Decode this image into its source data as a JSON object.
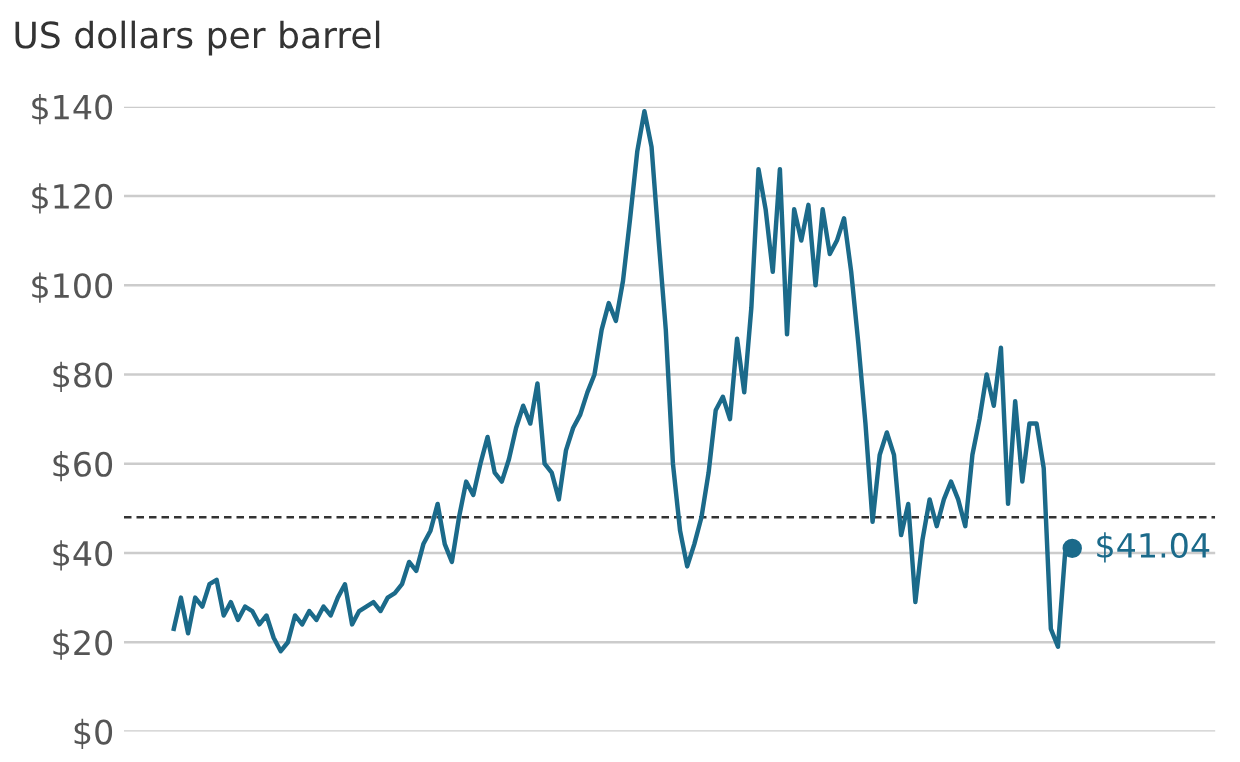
{
  "chart_data": {
    "type": "line",
    "subtitle": "US dollars per barrel",
    "categories": [
      null,
      null,
      null,
      null,
      null,
      null,
      null,
      null,
      null,
      null,
      null,
      null,
      null,
      null,
      null,
      null,
      null,
      null,
      null,
      null,
      null,
      null,
      null,
      null,
      null,
      null,
      null,
      null,
      null,
      null,
      null,
      null,
      null,
      null,
      null,
      null,
      null,
      null,
      null,
      null,
      null,
      null,
      null,
      null,
      null,
      null,
      null,
      null,
      null,
      null,
      null,
      null,
      null,
      null,
      null,
      null,
      null,
      null,
      null,
      null,
      null,
      null,
      null,
      null,
      null,
      null,
      null,
      null,
      null,
      null,
      null,
      null,
      null,
      null,
      null,
      null,
      null,
      null,
      null,
      null,
      null,
      null,
      null,
      null,
      null,
      null,
      null,
      null,
      null,
      null,
      null,
      null,
      null,
      null,
      null,
      null,
      null,
      null,
      null,
      null,
      null,
      null,
      null,
      null,
      null,
      null,
      null,
      null,
      null,
      null,
      null,
      null,
      null,
      null,
      null,
      null,
      null,
      null,
      null,
      null,
      null,
      null,
      null,
      null,
      null,
      null,
      null
    ],
    "series": [
      {
        "color": "#1b6a8a",
        "values": [
          23,
          30,
          22,
          30,
          28,
          33,
          34,
          26,
          29,
          25,
          28,
          27,
          24,
          26,
          21,
          18,
          20,
          26,
          24,
          27,
          25,
          28,
          26,
          30,
          33,
          24,
          27,
          28,
          29,
          27,
          30,
          31,
          33,
          38,
          36,
          42,
          45,
          51,
          42,
          38,
          48,
          56,
          53,
          60,
          66,
          58,
          56,
          61,
          68,
          73,
          69,
          78,
          60,
          58,
          52,
          63,
          68,
          71,
          76,
          80,
          90,
          96,
          92,
          101,
          115,
          130,
          139,
          131,
          110,
          90,
          60,
          45,
          37,
          42,
          48,
          58,
          72,
          75,
          70,
          88,
          76,
          95,
          126,
          117,
          103,
          126,
          89,
          117,
          110,
          118,
          100,
          117,
          107,
          110,
          115,
          103,
          87,
          69,
          47,
          62,
          67,
          62,
          44,
          51,
          29,
          43,
          52,
          46,
          52,
          56,
          52,
          46,
          62,
          70,
          80,
          73,
          86,
          51,
          74,
          56,
          69,
          69,
          59,
          23,
          19,
          40,
          41.04
        ],
        "value_labels": [
          null,
          null,
          null,
          null,
          null,
          null,
          null,
          null,
          null,
          null,
          null,
          null,
          null,
          null,
          null,
          null,
          null,
          null,
          null,
          null,
          null,
          null,
          null,
          null,
          null,
          null,
          null,
          null,
          null,
          null,
          null,
          null,
          null,
          null,
          null,
          null,
          null,
          null,
          null,
          null,
          null,
          null,
          null,
          null,
          null,
          null,
          null,
          null,
          null,
          null,
          null,
          null,
          null,
          null,
          null,
          null,
          null,
          null,
          null,
          null,
          null,
          null,
          null,
          null,
          null,
          null,
          null,
          null,
          null,
          null,
          null,
          null,
          null,
          null,
          null,
          null,
          null,
          null,
          null,
          null,
          null,
          null,
          null,
          null,
          null,
          null,
          null,
          null,
          null,
          null,
          null,
          null,
          null,
          null,
          null,
          null,
          null,
          null,
          null,
          null,
          null,
          null,
          null,
          null,
          null,
          null,
          null,
          null,
          null,
          null,
          null,
          null,
          null,
          null,
          null,
          null,
          null,
          null,
          null,
          null,
          null,
          null,
          null,
          null,
          null,
          null,
          "$41.04"
        ]
      }
    ],
    "ylim": [
      0,
      140
    ],
    "yticks": [
      {
        "value": 0,
        "label": "$0"
      },
      {
        "value": 20,
        "label": "$20"
      },
      {
        "value": 40,
        "label": "$40"
      },
      {
        "value": 60,
        "label": "$60"
      },
      {
        "value": 80,
        "label": "$80"
      },
      {
        "value": 100,
        "label": "$100"
      },
      {
        "value": 120,
        "label": "$120"
      },
      {
        "value": 140,
        "label": "$140"
      }
    ],
    "grid": "y",
    "tick_labels": "y",
    "marker": "none",
    "line_style": "solid",
    "ref_lines": [
      {
        "axis": "y",
        "value": 48,
        "color": "#333333",
        "line_style": "dashed"
      }
    ]
  }
}
